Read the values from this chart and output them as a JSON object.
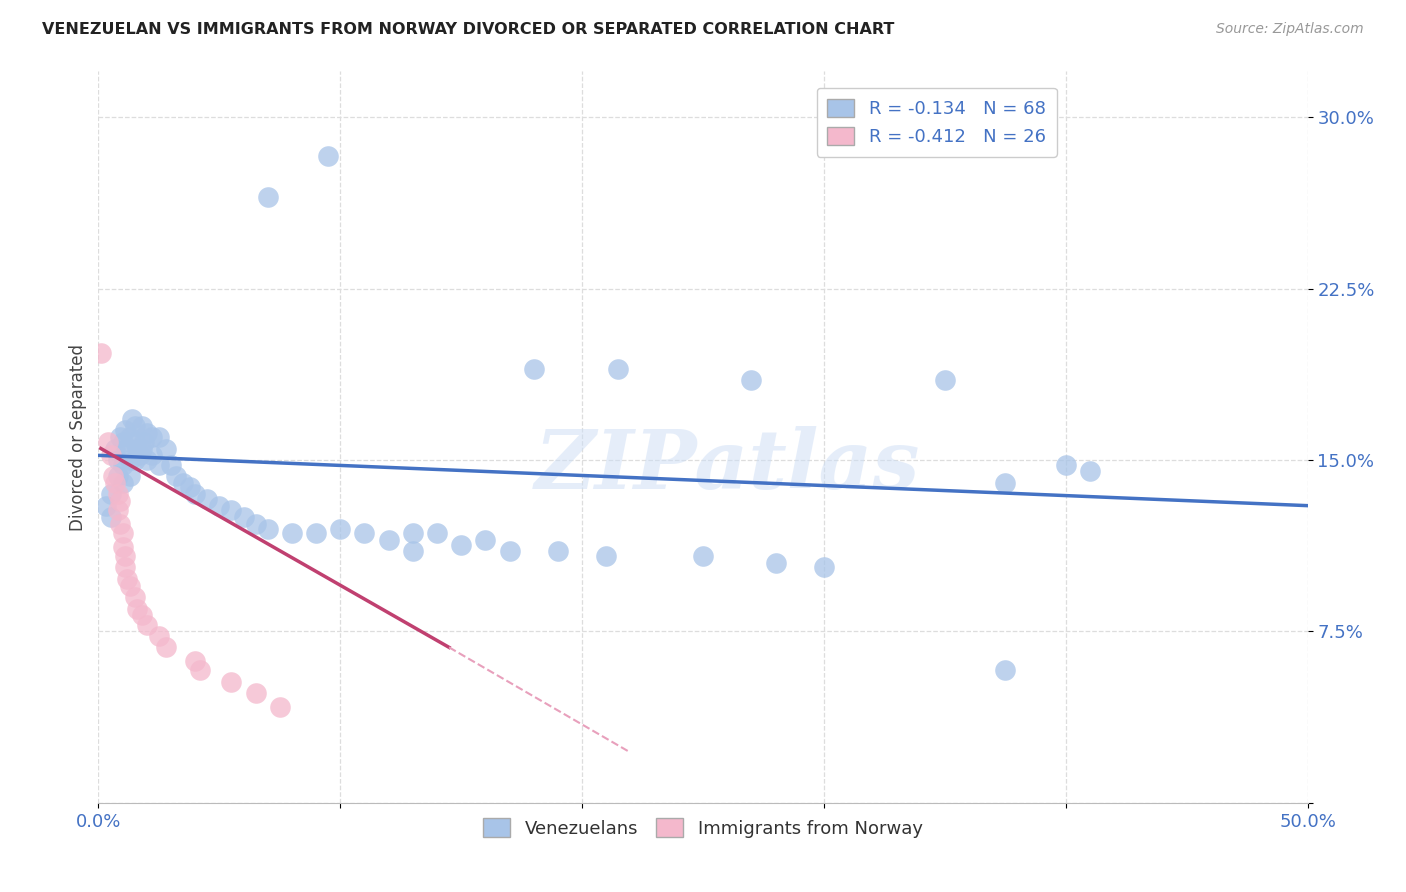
{
  "title": "VENEZUELAN VS IMMIGRANTS FROM NORWAY DIVORCED OR SEPARATED CORRELATION CHART",
  "source": "Source: ZipAtlas.com",
  "ylabel": "Divorced or Separated",
  "xlim": [
    0.0,
    0.5
  ],
  "ylim": [
    0.0,
    0.32
  ],
  "xticks": [
    0.0,
    0.1,
    0.2,
    0.3,
    0.4,
    0.5
  ],
  "yticks": [
    0.0,
    0.075,
    0.15,
    0.225,
    0.3
  ],
  "ytick_labels": [
    "",
    "7.5%",
    "15.0%",
    "22.5%",
    "30.0%"
  ],
  "watermark": "ZIPatlas",
  "legend_blue_r": "R = -0.134",
  "legend_blue_n": "N = 68",
  "legend_pink_r": "R = -0.412",
  "legend_pink_n": "N = 26",
  "blue_color": "#a8c4e8",
  "pink_color": "#f4b8cc",
  "blue_line_color": "#4472c4",
  "pink_line_color": "#c04070",
  "pink_dash_color": "#e8a0bc",
  "blue_scatter": [
    [
      0.003,
      0.13
    ],
    [
      0.005,
      0.135
    ],
    [
      0.005,
      0.125
    ],
    [
      0.007,
      0.155
    ],
    [
      0.008,
      0.15
    ],
    [
      0.008,
      0.143
    ],
    [
      0.009,
      0.16
    ],
    [
      0.01,
      0.158
    ],
    [
      0.01,
      0.148
    ],
    [
      0.01,
      0.14
    ],
    [
      0.011,
      0.163
    ],
    [
      0.012,
      0.155
    ],
    [
      0.013,
      0.16
    ],
    [
      0.013,
      0.15
    ],
    [
      0.013,
      0.143
    ],
    [
      0.014,
      0.168
    ],
    [
      0.015,
      0.165
    ],
    [
      0.015,
      0.158
    ],
    [
      0.015,
      0.15
    ],
    [
      0.016,
      0.155
    ],
    [
      0.017,
      0.152
    ],
    [
      0.018,
      0.165
    ],
    [
      0.018,
      0.155
    ],
    [
      0.019,
      0.158
    ],
    [
      0.02,
      0.162
    ],
    [
      0.02,
      0.15
    ],
    [
      0.022,
      0.16
    ],
    [
      0.022,
      0.152
    ],
    [
      0.025,
      0.16
    ],
    [
      0.025,
      0.148
    ],
    [
      0.028,
      0.155
    ],
    [
      0.03,
      0.148
    ],
    [
      0.032,
      0.143
    ],
    [
      0.035,
      0.14
    ],
    [
      0.038,
      0.138
    ],
    [
      0.04,
      0.135
    ],
    [
      0.045,
      0.133
    ],
    [
      0.05,
      0.13
    ],
    [
      0.055,
      0.128
    ],
    [
      0.06,
      0.125
    ],
    [
      0.065,
      0.122
    ],
    [
      0.07,
      0.12
    ],
    [
      0.08,
      0.118
    ],
    [
      0.09,
      0.118
    ],
    [
      0.1,
      0.12
    ],
    [
      0.11,
      0.118
    ],
    [
      0.12,
      0.115
    ],
    [
      0.13,
      0.118
    ],
    [
      0.15,
      0.113
    ],
    [
      0.17,
      0.11
    ],
    [
      0.19,
      0.11
    ],
    [
      0.21,
      0.108
    ],
    [
      0.25,
      0.108
    ],
    [
      0.28,
      0.105
    ],
    [
      0.18,
      0.19
    ],
    [
      0.215,
      0.19
    ],
    [
      0.27,
      0.185
    ],
    [
      0.35,
      0.185
    ],
    [
      0.375,
      0.14
    ],
    [
      0.4,
      0.148
    ],
    [
      0.41,
      0.145
    ],
    [
      0.375,
      0.058
    ],
    [
      0.07,
      0.265
    ],
    [
      0.095,
      0.283
    ],
    [
      0.16,
      0.115
    ],
    [
      0.3,
      0.103
    ],
    [
      0.13,
      0.11
    ],
    [
      0.14,
      0.118
    ]
  ],
  "pink_scatter": [
    [
      0.001,
      0.197
    ],
    [
      0.004,
      0.158
    ],
    [
      0.005,
      0.152
    ],
    [
      0.006,
      0.143
    ],
    [
      0.007,
      0.14
    ],
    [
      0.008,
      0.135
    ],
    [
      0.008,
      0.128
    ],
    [
      0.009,
      0.132
    ],
    [
      0.009,
      0.122
    ],
    [
      0.01,
      0.118
    ],
    [
      0.01,
      0.112
    ],
    [
      0.011,
      0.108
    ],
    [
      0.011,
      0.103
    ],
    [
      0.012,
      0.098
    ],
    [
      0.013,
      0.095
    ],
    [
      0.015,
      0.09
    ],
    [
      0.016,
      0.085
    ],
    [
      0.018,
      0.082
    ],
    [
      0.02,
      0.078
    ],
    [
      0.025,
      0.073
    ],
    [
      0.028,
      0.068
    ],
    [
      0.04,
      0.062
    ],
    [
      0.042,
      0.058
    ],
    [
      0.055,
      0.053
    ],
    [
      0.065,
      0.048
    ],
    [
      0.075,
      0.042
    ]
  ],
  "blue_trendline": [
    [
      0.0,
      0.152
    ],
    [
      0.5,
      0.13
    ]
  ],
  "pink_trendline_solid": [
    [
      0.001,
      0.155
    ],
    [
      0.145,
      0.068
    ]
  ],
  "pink_trendline_dash": [
    [
      0.145,
      0.068
    ],
    [
      0.22,
      0.022
    ]
  ],
  "background_color": "#ffffff",
  "grid_color": "#dddddd"
}
